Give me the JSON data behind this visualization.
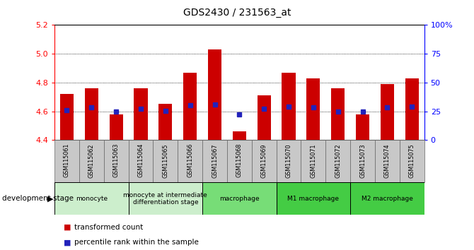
{
  "title": "GDS2430 / 231563_at",
  "samples": [
    "GSM115061",
    "GSM115062",
    "GSM115063",
    "GSM115064",
    "GSM115065",
    "GSM115066",
    "GSM115067",
    "GSM115068",
    "GSM115069",
    "GSM115070",
    "GSM115071",
    "GSM115072",
    "GSM115073",
    "GSM115074",
    "GSM115075"
  ],
  "bar_values": [
    4.72,
    4.76,
    4.58,
    4.76,
    4.65,
    4.87,
    5.03,
    4.46,
    4.71,
    4.87,
    4.83,
    4.76,
    4.58,
    4.79,
    4.83
  ],
  "blue_values": [
    4.608,
    4.628,
    4.598,
    4.618,
    4.601,
    4.642,
    4.648,
    4.578,
    4.618,
    4.63,
    4.628,
    4.6,
    4.599,
    4.628,
    4.63
  ],
  "ylim": [
    4.4,
    5.2
  ],
  "yticks_left": [
    4.4,
    4.6,
    4.8,
    5.0,
    5.2
  ],
  "yticks_right_pct": [
    0,
    25,
    50,
    75,
    100
  ],
  "yticks_right_labels": [
    "0",
    "25",
    "50",
    "75",
    "100%"
  ],
  "bar_color": "#cc0000",
  "blue_color": "#2222bb",
  "bar_bottom": 4.4,
  "grid_yticks": [
    4.6,
    4.8,
    5.0
  ],
  "stage_groups": [
    {
      "label": "monocyte",
      "s": 0,
      "e": 2,
      "color": "#cceecc"
    },
    {
      "label": "monocyte at intermediate\ndifferentiation stage",
      "s": 3,
      "e": 5,
      "color": "#cceecc"
    },
    {
      "label": "macrophage",
      "s": 6,
      "e": 8,
      "color": "#77dd77"
    },
    {
      "label": "M1 macrophage",
      "s": 9,
      "e": 11,
      "color": "#44cc44"
    },
    {
      "label": "M2 macrophage",
      "s": 12,
      "e": 14,
      "color": "#44cc44"
    }
  ],
  "legend_red_label": "transformed count",
  "legend_blue_label": "percentile rank within the sample",
  "tick_label_bg": "#c0c0c0"
}
